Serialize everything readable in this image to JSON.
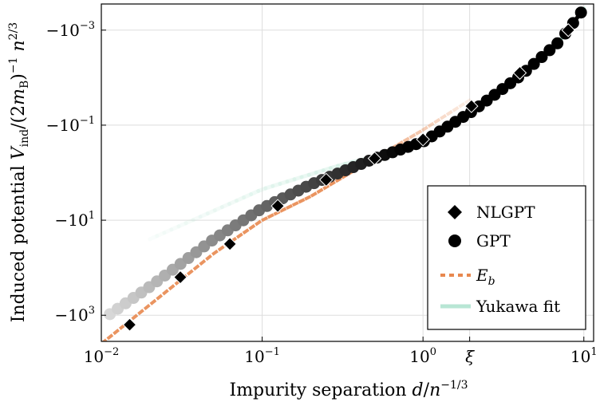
{
  "chart_data": {
    "type": "scatter",
    "xscale": "log",
    "yscale": "symlog-negative",
    "xlim": [
      0.01,
      11.5
    ],
    "ylim_log_magnitude": [
      -3.55,
      3.55
    ],
    "grid": true,
    "xlabel": "Impurity separation d/n^{-1/3}",
    "ylabel": "Induced potential V_ind/(2m_B)^{-1} n^{2/3}",
    "x_ticks": [
      {
        "value": 0.01,
        "base": "10",
        "exp": "−2"
      },
      {
        "value": 0.1,
        "base": "10",
        "exp": "−1"
      },
      {
        "value": 1,
        "base": "10",
        "exp": "0"
      },
      {
        "value": 10,
        "base": "10",
        "exp": "1"
      }
    ],
    "x_special_tick": {
      "value": 1.95,
      "label": "ξ"
    },
    "y_ticks": [
      {
        "log_mag": -3,
        "label": "−10",
        "exp": "−3"
      },
      {
        "log_mag": -1,
        "label": "−10",
        "exp": "−1"
      },
      {
        "log_mag": 1,
        "label": "−10",
        "exp": "1"
      },
      {
        "log_mag": 3,
        "label": "−10",
        "exp": "3"
      }
    ],
    "legend": {
      "position": "bottom-right",
      "entries": [
        {
          "name": "NLGPT",
          "marker": "diamond",
          "color": "#000000"
        },
        {
          "name": "GPT",
          "marker": "circle",
          "color": "#000000"
        },
        {
          "name": "E_b",
          "marker": "dashed-line",
          "color": "#e8884f"
        },
        {
          "name": "Yukawa fit",
          "marker": "line",
          "color": "#b8e6d4"
        }
      ]
    },
    "series": [
      {
        "name": "NLGPT",
        "marker": "diamond",
        "color": "#000000",
        "points": [
          {
            "x": 0.015,
            "y_log_mag": 3.2
          },
          {
            "x": 0.031,
            "y_log_mag": 2.2
          },
          {
            "x": 0.063,
            "y_log_mag": 1.5
          },
          {
            "x": 0.125,
            "y_log_mag": 0.7
          },
          {
            "x": 0.25,
            "y_log_mag": 0.15
          },
          {
            "x": 0.5,
            "y_log_mag": -0.3
          },
          {
            "x": 1.0,
            "y_log_mag": -0.7
          },
          {
            "x": 2.0,
            "y_log_mag": -1.4
          },
          {
            "x": 4.0,
            "y_log_mag": -2.1
          },
          {
            "x": 8.0,
            "y_log_mag": -3.0
          }
        ]
      },
      {
        "name": "GPT",
        "marker": "circle",
        "color": "#000000",
        "x_range": [
          0.0113,
          9.6
        ],
        "count": 61,
        "y_log_mag_at": [
          {
            "x": 0.01,
            "y_log_mag": 3.1
          },
          {
            "x": 0.02,
            "y_log_mag": 2.4
          },
          {
            "x": 0.05,
            "y_log_mag": 1.4
          },
          {
            "x": 0.1,
            "y_log_mag": 0.75
          },
          {
            "x": 0.2,
            "y_log_mag": 0.25
          },
          {
            "x": 0.5,
            "y_log_mag": -0.3
          },
          {
            "x": 1.0,
            "y_log_mag": -0.65
          },
          {
            "x": 2.0,
            "y_log_mag": -1.28
          },
          {
            "x": 4.0,
            "y_log_mag": -2.03
          },
          {
            "x": 7.0,
            "y_log_mag": -2.75
          },
          {
            "x": 10.0,
            "y_log_mag": -3.45
          }
        ]
      },
      {
        "name": "E_b",
        "style": "dashed",
        "color": "#e8884f",
        "y_log_mag_at": [
          {
            "x": 0.01,
            "y_log_mag": 3.6
          },
          {
            "x": 0.05,
            "y_log_mag": 1.7
          },
          {
            "x": 0.1,
            "y_log_mag": 1.0
          },
          {
            "x": 0.2,
            "y_log_mag": 0.5
          },
          {
            "x": 0.5,
            "y_log_mag": -0.3
          },
          {
            "x": 1.0,
            "y_log_mag": -0.9
          },
          {
            "x": 2.0,
            "y_log_mag": -1.55
          }
        ]
      },
      {
        "name": "Yukawa fit",
        "style": "solid",
        "color": "#b8e6d4",
        "y_log_mag_at": [
          {
            "x": 0.02,
            "y_log_mag": 1.4
          },
          {
            "x": 0.1,
            "y_log_mag": 0.35
          },
          {
            "x": 0.3,
            "y_log_mag": -0.15
          },
          {
            "x": 1.0,
            "y_log_mag": -0.6
          },
          {
            "x": 2.0,
            "y_log_mag": -1.28
          },
          {
            "x": 4.0,
            "y_log_mag": -2.03
          },
          {
            "x": 7.0,
            "y_log_mag": -2.75
          },
          {
            "x": 10.0,
            "y_log_mag": -3.45
          }
        ]
      }
    ]
  }
}
